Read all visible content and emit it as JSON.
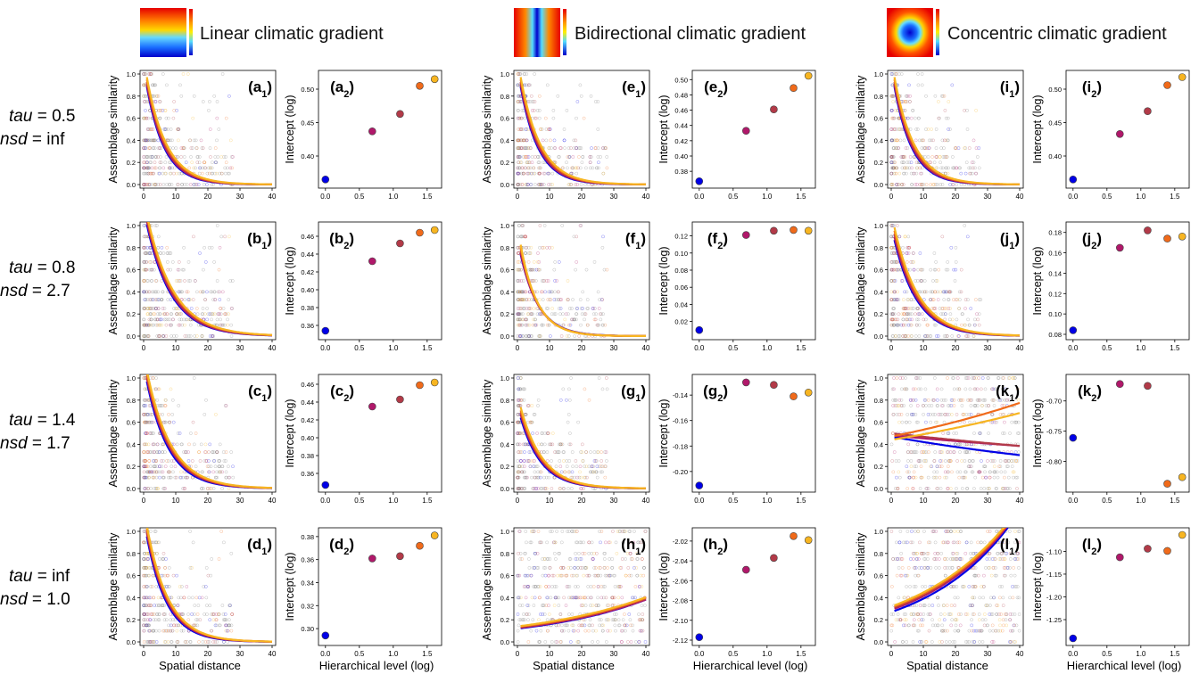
{
  "headers": [
    "Linear climatic gradient",
    "Bidirectional climatic gradient",
    "Concentric climatic gradient"
  ],
  "row_labels": [
    {
      "tau": "0.5",
      "nsd": "inf"
    },
    {
      "tau": "0.8",
      "nsd": "2.7"
    },
    {
      "tau": "1.4",
      "nsd": "1.7"
    },
    {
      "tau": "inf",
      "nsd": "1.0"
    }
  ],
  "text": {
    "tau_name": "tau",
    "nsd_name": "nsd",
    "eq": " = ",
    "ylabel_sim": "Assemblage similarity",
    "ylabel_int": "Intercept (log)",
    "xlabel_dist": "Spatial distance",
    "xlabel_level": "Hierarchical level (log)"
  },
  "colors": {
    "levels": [
      "#0000e6",
      "#b0186a",
      "#b23a48",
      "#f06a1a",
      "#f7b521"
    ],
    "points_gray": "#777777",
    "axis": "#000000",
    "map_cold": "#0000cc",
    "map_warm": "#e60000"
  },
  "chart_data": [
    {
      "id": "a",
      "row": 0,
      "col": 0,
      "type": "scatter",
      "similarity": {
        "xlim": [
          0,
          40
        ],
        "ylim": [
          0,
          1
        ],
        "xticks": [
          0,
          10,
          20,
          30,
          40
        ],
        "yticks": [
          0.0,
          0.2,
          0.4,
          0.6,
          0.8,
          1.0
        ],
        "curves": [
          {
            "a": 1.06,
            "b": 0.18
          },
          {
            "a": 1.08,
            "b": 0.175
          },
          {
            "a": 1.1,
            "b": 0.17
          },
          {
            "a": 1.12,
            "b": 0.165
          },
          {
            "a": 1.14,
            "b": 0.16
          }
        ]
      },
      "intercept": {
        "x": [
          0.0,
          0.69,
          1.1,
          1.39,
          1.61
        ],
        "y": [
          0.365,
          0.437,
          0.463,
          0.505,
          0.515
        ],
        "ylim": [
          0.36,
          0.52
        ],
        "yticks": [
          0.4,
          0.45,
          0.5
        ],
        "yticklabels": [
          "0.40",
          "0.45",
          "0.50"
        ]
      }
    },
    {
      "id": "b",
      "row": 1,
      "col": 0,
      "type": "scatter",
      "similarity": {
        "xlim": [
          0,
          40
        ],
        "ylim": [
          0,
          1
        ],
        "xticks": [
          0,
          10,
          20,
          30,
          40
        ],
        "yticks": [
          0.0,
          0.2,
          0.4,
          0.6,
          0.8,
          1.0
        ],
        "curves": [
          {
            "a": 1.15,
            "b": 0.13
          },
          {
            "a": 1.18,
            "b": 0.128
          },
          {
            "a": 1.2,
            "b": 0.125
          },
          {
            "a": 1.22,
            "b": 0.122
          },
          {
            "a": 1.24,
            "b": 0.12
          }
        ]
      },
      "intercept": {
        "x": [
          0.0,
          0.69,
          1.1,
          1.39,
          1.61
        ],
        "y": [
          0.354,
          0.432,
          0.452,
          0.464,
          0.467
        ],
        "ylim": [
          0.35,
          0.47
        ],
        "yticks": [
          0.36,
          0.38,
          0.4,
          0.42,
          0.44,
          0.46
        ],
        "yticklabels": [
          "0.36",
          "0.38",
          "0.40",
          "0.42",
          "0.44",
          "0.46"
        ]
      }
    },
    {
      "id": "c",
      "row": 2,
      "col": 0,
      "type": "scatter",
      "similarity": {
        "xlim": [
          0,
          40
        ],
        "ylim": [
          0,
          1
        ],
        "xticks": [
          0,
          10,
          20,
          30,
          40
        ],
        "yticks": [
          0.0,
          0.2,
          0.4,
          0.6,
          0.8,
          1.0
        ],
        "curves": [
          {
            "a": 1.12,
            "b": 0.145
          },
          {
            "a": 1.15,
            "b": 0.14
          },
          {
            "a": 1.17,
            "b": 0.138
          },
          {
            "a": 1.19,
            "b": 0.135
          },
          {
            "a": 1.22,
            "b": 0.132
          }
        ]
      },
      "intercept": {
        "x": [
          0.0,
          0.69,
          1.1,
          1.39,
          1.61
        ],
        "y": [
          0.347,
          0.435,
          0.443,
          0.459,
          0.462
        ],
        "ylim": [
          0.345,
          0.465
        ],
        "yticks": [
          0.36,
          0.38,
          0.4,
          0.42,
          0.44,
          0.46
        ],
        "yticklabels": [
          "0.36",
          "0.38",
          "0.40",
          "0.42",
          "0.44",
          "0.46"
        ]
      }
    },
    {
      "id": "d",
      "row": 3,
      "col": 0,
      "type": "scatter",
      "similarity": {
        "xlim": [
          0,
          40
        ],
        "ylim": [
          0,
          1
        ],
        "xticks": [
          0,
          10,
          20,
          30,
          40
        ],
        "yticks": [
          0.0,
          0.2,
          0.4,
          0.6,
          0.8,
          1.0
        ],
        "curves": [
          {
            "a": 1.12,
            "b": 0.16
          },
          {
            "a": 1.15,
            "b": 0.155
          },
          {
            "a": 1.17,
            "b": 0.152
          },
          {
            "a": 1.19,
            "b": 0.15
          },
          {
            "a": 1.22,
            "b": 0.148
          }
        ]
      },
      "intercept": {
        "x": [
          0.0,
          0.69,
          1.1,
          1.39,
          1.61
        ],
        "y": [
          0.294,
          0.361,
          0.363,
          0.372,
          0.381
        ],
        "ylim": [
          0.29,
          0.383
        ],
        "yticks": [
          0.3,
          0.32,
          0.34,
          0.36,
          0.38
        ],
        "yticklabels": [
          "0.30",
          "0.32",
          "0.34",
          "0.36",
          "0.38"
        ]
      }
    },
    {
      "id": "e",
      "row": 0,
      "col": 1,
      "type": "scatter",
      "similarity": {
        "xlim": [
          0,
          40
        ],
        "ylim": [
          0,
          1
        ],
        "xticks": [
          0,
          10,
          20,
          30,
          40
        ],
        "yticks": [
          0.0,
          0.2,
          0.4,
          0.6,
          0.8,
          1.0
        ],
        "curves": [
          {
            "a": 1.06,
            "b": 0.18
          },
          {
            "a": 1.08,
            "b": 0.175
          },
          {
            "a": 1.1,
            "b": 0.17
          },
          {
            "a": 1.12,
            "b": 0.165
          },
          {
            "a": 1.14,
            "b": 0.16
          }
        ]
      },
      "intercept": {
        "x": [
          0.0,
          0.69,
          1.1,
          1.39,
          1.61
        ],
        "y": [
          0.367,
          0.433,
          0.461,
          0.489,
          0.505
        ],
        "ylim": [
          0.365,
          0.505
        ],
        "yticks": [
          0.38,
          0.4,
          0.42,
          0.44,
          0.46,
          0.48,
          0.5
        ],
        "yticklabels": [
          "0.38",
          "0.40",
          "0.42",
          "0.44",
          "0.46",
          "0.48",
          "0.50"
        ]
      }
    },
    {
      "id": "f",
      "row": 1,
      "col": 1,
      "type": "scatter",
      "similarity": {
        "xlim": [
          0,
          40
        ],
        "ylim": [
          0,
          1
        ],
        "xticks": [
          0,
          10,
          20,
          30,
          40
        ],
        "yticks": [
          0.0,
          0.2,
          0.4,
          0.6,
          0.8,
          1.0
        ],
        "curves": [
          {
            "a": 0.88,
            "b": 0.175
          },
          {
            "a": 0.9,
            "b": 0.18
          },
          {
            "a": 0.93,
            "b": 0.182
          },
          {
            "a": 0.96,
            "b": 0.185
          },
          {
            "a": 1.0,
            "b": 0.19
          }
        ]
      },
      "intercept": {
        "x": [
          0.0,
          0.69,
          1.1,
          1.39,
          1.61
        ],
        "y": [
          0.01,
          0.121,
          0.126,
          0.127,
          0.126
        ],
        "ylim": [
          0.005,
          0.13
        ],
        "yticks": [
          0.02,
          0.04,
          0.06,
          0.08,
          0.1,
          0.12
        ],
        "yticklabels": [
          "0.02",
          "0.04",
          "0.06",
          "0.08",
          "0.10",
          "0.12"
        ]
      }
    },
    {
      "id": "g",
      "row": 2,
      "col": 1,
      "type": "scatter",
      "similarity": {
        "xlim": [
          0,
          40
        ],
        "ylim": [
          0,
          1
        ],
        "xticks": [
          0,
          10,
          20,
          30,
          40
        ],
        "yticks": [
          0.0,
          0.2,
          0.4,
          0.6,
          0.8,
          1.0
        ],
        "curves": [
          {
            "a": 0.75,
            "b": 0.155
          },
          {
            "a": 0.78,
            "b": 0.152
          },
          {
            "a": 0.8,
            "b": 0.15
          },
          {
            "a": 0.82,
            "b": 0.148
          },
          {
            "a": 0.85,
            "b": 0.145
          }
        ]
      },
      "intercept": {
        "x": [
          0.0,
          0.69,
          1.1,
          1.39,
          1.61
        ],
        "y": [
          -0.211,
          -0.13,
          -0.132,
          -0.141,
          -0.138
        ],
        "ylim": [
          -0.212,
          -0.128
        ],
        "yticks": [
          -0.2,
          -0.18,
          -0.16,
          -0.14
        ],
        "yticklabels": [
          "-0.20",
          "-0.18",
          "-0.16",
          "-0.14"
        ]
      }
    },
    {
      "id": "h",
      "row": 3,
      "col": 1,
      "type": "scatter",
      "similarity": {
        "xlim": [
          0,
          40
        ],
        "ylim": [
          0,
          1
        ],
        "xticks": [
          0,
          10,
          20,
          30,
          40
        ],
        "yticks": [
          0.0,
          0.2,
          0.4,
          0.6,
          0.8,
          1.0
        ],
        "curves": [
          {
            "a": 0.12,
            "b": -0.029
          },
          {
            "a": 0.125,
            "b": -0.028
          },
          {
            "a": 0.13,
            "b": -0.0275
          },
          {
            "a": 0.135,
            "b": -0.027
          },
          {
            "a": 0.14,
            "b": -0.0265
          }
        ]
      },
      "intercept": {
        "x": [
          0.0,
          0.69,
          1.1,
          1.39,
          1.61
        ],
        "y": [
          -2.117,
          -2.049,
          -2.037,
          -2.015,
          -2.019
        ],
        "ylim": [
          -2.12,
          -2.012
        ],
        "yticks": [
          -2.12,
          -2.1,
          -2.08,
          -2.06,
          -2.04,
          -2.02
        ],
        "yticklabels": [
          "-2.12",
          "-2.10",
          "-2.08",
          "-2.06",
          "-2.04",
          "-2.02"
        ]
      }
    },
    {
      "id": "i",
      "row": 0,
      "col": 2,
      "type": "scatter",
      "similarity": {
        "xlim": [
          0,
          40
        ],
        "ylim": [
          0,
          1
        ],
        "xticks": [
          0,
          10,
          20,
          30,
          40
        ],
        "yticks": [
          0.0,
          0.2,
          0.4,
          0.6,
          0.8,
          1.0
        ],
        "curves": [
          {
            "a": 1.06,
            "b": 0.18
          },
          {
            "a": 1.08,
            "b": 0.175
          },
          {
            "a": 1.1,
            "b": 0.17
          },
          {
            "a": 1.12,
            "b": 0.165
          },
          {
            "a": 1.14,
            "b": 0.16
          }
        ]
      },
      "intercept": {
        "x": [
          0.0,
          0.69,
          1.1,
          1.39,
          1.61
        ],
        "y": [
          0.365,
          0.433,
          0.467,
          0.506,
          0.518
        ],
        "ylim": [
          0.36,
          0.52
        ],
        "yticks": [
          0.4,
          0.45,
          0.5
        ],
        "yticklabels": [
          "0.40",
          "0.45",
          "0.50"
        ]
      }
    },
    {
      "id": "j",
      "row": 1,
      "col": 2,
      "type": "scatter",
      "similarity": {
        "xlim": [
          0,
          40
        ],
        "ylim": [
          0,
          1
        ],
        "xticks": [
          0,
          10,
          20,
          30,
          40
        ],
        "yticks": [
          0.0,
          0.2,
          0.4,
          0.6,
          0.8,
          1.0
        ],
        "curves": [
          {
            "a": 1.0,
            "b": 0.14
          },
          {
            "a": 1.03,
            "b": 0.137
          },
          {
            "a": 1.06,
            "b": 0.135
          },
          {
            "a": 1.09,
            "b": 0.133
          },
          {
            "a": 1.12,
            "b": 0.13
          }
        ]
      },
      "intercept": {
        "x": [
          0.0,
          0.69,
          1.1,
          1.39,
          1.61
        ],
        "y": [
          0.084,
          0.165,
          0.182,
          0.174,
          0.176
        ],
        "ylim": [
          0.08,
          0.185
        ],
        "yticks": [
          0.08,
          0.1,
          0.12,
          0.14,
          0.16,
          0.18
        ],
        "yticklabels": [
          "0.08",
          "0.10",
          "0.12",
          "0.14",
          "0.16",
          "0.18"
        ]
      }
    },
    {
      "id": "k",
      "row": 2,
      "col": 2,
      "type": "scatter",
      "similarity": {
        "xlim": [
          0,
          40
        ],
        "ylim": [
          0,
          1
        ],
        "xticks": [
          0,
          10,
          20,
          30,
          40
        ],
        "yticks": [
          0.0,
          0.2,
          0.4,
          0.6,
          0.8,
          1.0
        ],
        "curves": [
          {
            "a": 0.47,
            "b": 0.011
          },
          {
            "a": 0.48,
            "b": 0.0055
          },
          {
            "a": 0.5,
            "b": 0.0065
          },
          {
            "a": 0.47,
            "b": -0.0125
          },
          {
            "a": 0.44,
            "b": -0.011
          }
        ]
      },
      "intercept": {
        "x": [
          0.0,
          0.69,
          1.1,
          1.39,
          1.61
        ],
        "y": [
          -0.761,
          -0.672,
          -0.675,
          -0.837,
          -0.826
        ],
        "ylim": [
          -0.842,
          -0.665
        ],
        "yticks": [
          -0.8,
          -0.75,
          -0.7
        ],
        "yticklabels": [
          "-0.80",
          "-0.75",
          "-0.70"
        ]
      }
    },
    {
      "id": "l",
      "row": 3,
      "col": 2,
      "type": "scatter",
      "similarity": {
        "xlim": [
          0,
          40
        ],
        "ylim": [
          0,
          1
        ],
        "xticks": [
          0,
          10,
          20,
          30,
          40
        ],
        "yticks": [
          0.0,
          0.2,
          0.4,
          0.6,
          0.8,
          1.0
        ],
        "curves": [
          {
            "a": 0.27,
            "b": -0.037
          },
          {
            "a": 0.29,
            "b": -0.0355
          },
          {
            "a": 0.3,
            "b": -0.035
          },
          {
            "a": 0.31,
            "b": -0.034
          },
          {
            "a": 0.32,
            "b": -0.0335
          }
        ]
      },
      "intercept": {
        "x": [
          0.0,
          0.69,
          1.1,
          1.39,
          1.61
        ],
        "y": [
          -1.291,
          -1.113,
          -1.094,
          -1.099,
          -1.064
        ],
        "ylim": [
          -1.295,
          -1.06
        ],
        "yticks": [
          -1.25,
          -1.2,
          -1.15,
          -1.1
        ],
        "yticklabels": [
          "-1.25",
          "-1.20",
          "-1.15",
          "-1.10"
        ]
      }
    }
  ],
  "shared_axes": {
    "intercept_xticks": [
      0.0,
      0.5,
      1.0,
      1.5
    ],
    "intercept_xticklabels": [
      "0.0",
      "0.5",
      "1.0",
      "1.5"
    ],
    "intercept_xlim": [
      -0.05,
      1.66
    ]
  }
}
